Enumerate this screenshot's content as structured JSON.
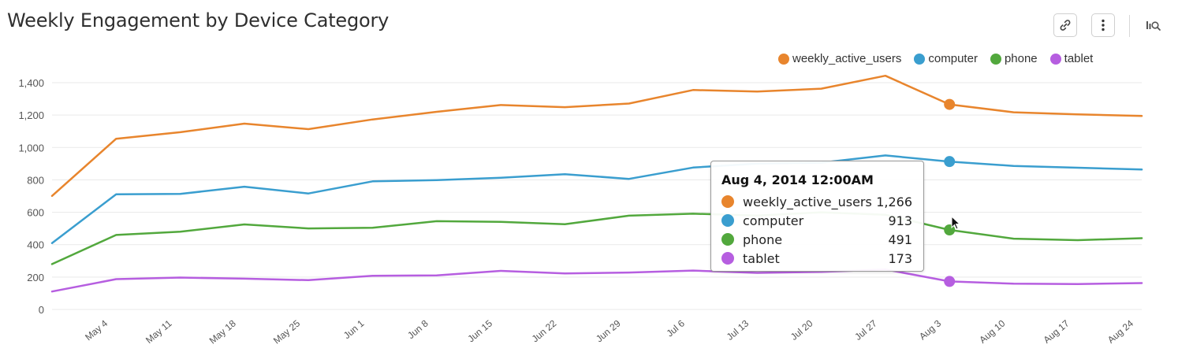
{
  "page": {
    "title": "Weekly Engagement by Device Category"
  },
  "toolbar": {
    "link_icon": "link-icon",
    "more_icon": "more-vertical-icon",
    "explore_icon": "explore-data-icon"
  },
  "colors": {
    "weekly_active_users": "#e8852d",
    "computer": "#3a9ecf",
    "phone": "#52a83d",
    "tablet": "#b65ee0",
    "grid": "#e9e9e9"
  },
  "chart_data": {
    "type": "line",
    "title": "Weekly Engagement by Device Category",
    "xlabel": "",
    "ylabel": "",
    "ylim": [
      0,
      1400
    ],
    "y_ticks": [
      "0",
      "200",
      "400",
      "600",
      "800",
      "1,000",
      "1,200",
      "1,400"
    ],
    "grid": true,
    "legend_position": "top-right",
    "x": [
      "2014-04-28",
      "2014-05-05",
      "2014-05-12",
      "2014-05-19",
      "2014-05-26",
      "2014-06-02",
      "2014-06-09",
      "2014-06-16",
      "2014-06-23",
      "2014-06-30",
      "2014-07-07",
      "2014-07-14",
      "2014-07-21",
      "2014-07-28",
      "2014-08-04",
      "2014-08-11",
      "2014-08-18",
      "2014-08-25"
    ],
    "x_tick_labels": [
      "May 4",
      "May 11",
      "May 18",
      "May 25",
      "Jun 1",
      "Jun 8",
      "Jun 15",
      "Jun 22",
      "Jun 29",
      "Jul 6",
      "Jul 13",
      "Jul 20",
      "Jul 27",
      "Aug 3",
      "Aug 10",
      "Aug 17",
      "Aug 24"
    ],
    "series": [
      {
        "name": "weekly_active_users",
        "values": [
          701,
          1054,
          1094,
          1147,
          1113,
          1173,
          1220,
          1262,
          1249,
          1271,
          1355,
          1345,
          1363,
          1443,
          1266,
          1217,
          1204,
          1195
        ]
      },
      {
        "name": "computer",
        "values": [
          410,
          711,
          713,
          758,
          716,
          791,
          798,
          813,
          835,
          806,
          876,
          901,
          906,
          951,
          913,
          886,
          875,
          864
        ]
      },
      {
        "name": "phone",
        "values": [
          280,
          460,
          480,
          525,
          500,
          504,
          545,
          541,
          526,
          579,
          591,
          580,
          600,
          585,
          491,
          437,
          428,
          440
        ]
      },
      {
        "name": "tablet",
        "values": [
          111,
          187,
          197,
          190,
          181,
          208,
          210,
          238,
          222,
          228,
          240,
          226,
          232,
          247,
          173,
          159,
          157,
          163
        ]
      }
    ],
    "highlight_index": 14,
    "tooltip": {
      "title": "Aug 4, 2014 12:00AM",
      "rows": [
        {
          "name": "weekly_active_users",
          "value": "1,266"
        },
        {
          "name": "computer",
          "value": "913"
        },
        {
          "name": "phone",
          "value": "491"
        },
        {
          "name": "tablet",
          "value": "173"
        }
      ]
    }
  }
}
